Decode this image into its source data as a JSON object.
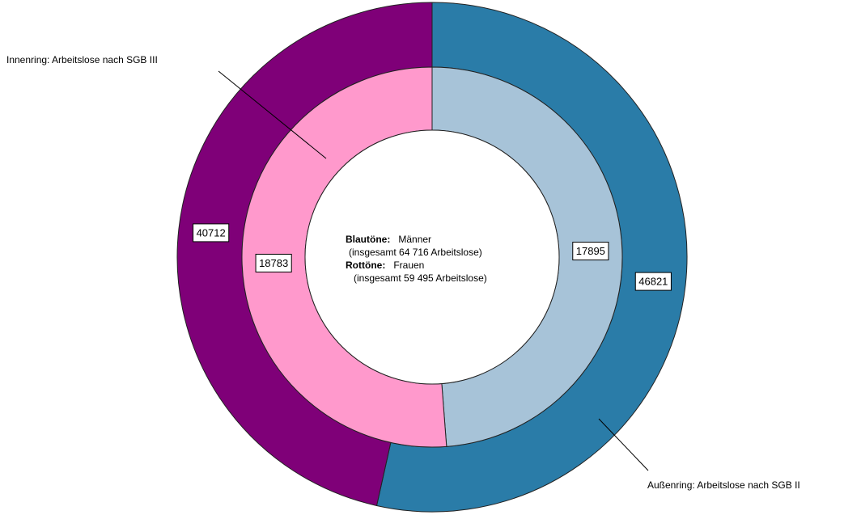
{
  "chart_data": {
    "type": "donut",
    "rings": [
      {
        "values": [
          46821,
          40712
        ],
        "colors": [
          "#2a7ca8",
          "#7f0078"
        ]
      },
      {
        "values": [
          17895,
          18783
        ],
        "colors": [
          "#a7c3d8",
          "#ff99cc"
        ]
      }
    ],
    "legend": [
      {
        "label": "Blautöne:",
        "text": "Männer",
        "note": "(insgesamt 64 716 Arbeitslose)"
      },
      {
        "label": "Rottöne:",
        "text": "Frauen",
        "note": "(insgesamt 59 495 Arbeitslose)"
      }
    ],
    "annotations": [
      "Innenring: Arbeitslose nach SGB III",
      "Außenring: Arbeitslose nach SGB II"
    ]
  }
}
